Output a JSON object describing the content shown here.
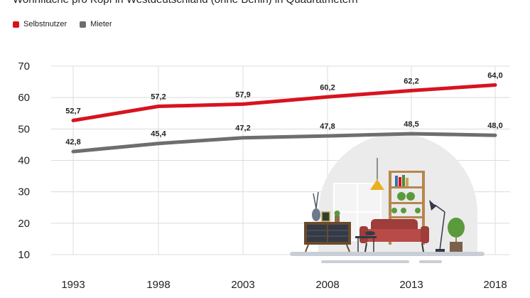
{
  "chart_data": {
    "type": "line",
    "title": "Wohnfläche pro Kopf in Westdeutschland (ohne Berlin) in Quadratmetern",
    "x": [
      "1993",
      "1998",
      "2003",
      "2008",
      "2013",
      "2018"
    ],
    "series": [
      {
        "name": "Selbstnutzer",
        "color": "#d7141e",
        "values": [
          52.7,
          57.2,
          57.9,
          60.2,
          62.2,
          64.0
        ],
        "labels": [
          "52,7",
          "57,2",
          "57,9",
          "60,2",
          "62,2",
          "64,0"
        ]
      },
      {
        "name": "Mieter",
        "color": "#6e6e6e",
        "values": [
          42.8,
          45.4,
          47.2,
          47.8,
          48.5,
          48.0
        ],
        "labels": [
          "42,8",
          "45,4",
          "47,2",
          "47,8",
          "48,5",
          "48,0"
        ]
      }
    ],
    "yticks": [
      "10",
      "20",
      "30",
      "40",
      "50",
      "60",
      "70"
    ],
    "ylim": [
      10,
      70
    ],
    "grid": true,
    "legend": "top-left"
  }
}
